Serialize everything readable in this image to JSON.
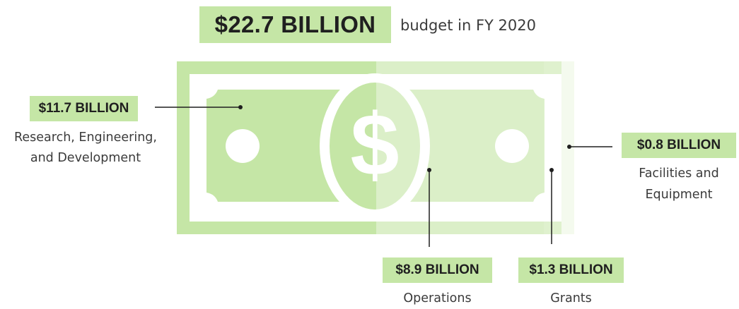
{
  "header": {
    "total": "$22.7 BILLION",
    "subtitle": "budget in FY 2020"
  },
  "labels": {
    "research": {
      "amount": "$11.7 BILLION",
      "caption_line1": "Research, Engineering,",
      "caption_line2": "and Development"
    },
    "operations": {
      "amount": "$8.9 BILLION",
      "caption": "Operations"
    },
    "grants": {
      "amount": "$1.3 BILLION",
      "caption": "Grants"
    },
    "facilities": {
      "amount": "$0.8 BILLION",
      "caption_line1": "Facilities and",
      "caption_line2": "Equipment"
    }
  },
  "colors": {
    "highlight": "#c5e6a6",
    "bill": "#c5e6a6",
    "bill_operations_overlay": "#ddf0cb",
    "bill_grants_overlay": "#ecf6e2",
    "bill_facilities_overlay": "#f4faee",
    "text": "#3b3b3b"
  },
  "chart_data": {
    "type": "table",
    "title": "$22.7 BILLION budget in FY 2020",
    "total": 22.7,
    "unit": "billion USD",
    "categories": [
      "Research, Engineering, and Development",
      "Operations",
      "Grants",
      "Facilities and Equipment"
    ],
    "values": [
      11.7,
      8.9,
      1.3,
      0.8
    ]
  }
}
